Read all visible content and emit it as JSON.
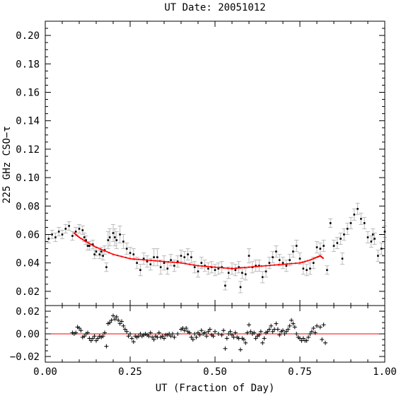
{
  "chart_data": [
    {
      "type": "scatter",
      "title": "UT Date: 20051012",
      "xlabel": "UT (Fraction of Day)",
      "ylabel": "225 GHz CSO−τ",
      "xlim": [
        0,
        1
      ],
      "ylim": [
        0.01,
        0.21
      ],
      "xticks": [
        "0.00",
        "0.25",
        "0.50",
        "0.75",
        "1.00"
      ],
      "yticks": [
        "0.02",
        "0.04",
        "0.06",
        "0.08",
        "0.10",
        "0.12",
        "0.14",
        "0.16",
        "0.18",
        "0.20"
      ],
      "colors": {
        "points": "#000000",
        "errorbars": "#bbbbbb",
        "fit": "#ff0000"
      },
      "series": [
        {
          "kind": "points-with-errorbars",
          "points": [
            [
              0.01,
              0.057,
              0.003
            ],
            [
              0.02,
              0.06,
              0.003
            ],
            [
              0.03,
              0.058,
              0.003
            ],
            [
              0.04,
              0.062,
              0.003
            ],
            [
              0.05,
              0.06,
              0.003
            ],
            [
              0.06,
              0.064,
              0.003
            ],
            [
              0.07,
              0.066,
              0.003
            ],
            [
              0.08,
              0.059,
              0.003
            ],
            [
              0.09,
              0.062,
              0.003
            ],
            [
              0.1,
              0.064,
              0.003
            ],
            [
              0.11,
              0.063,
              0.003
            ],
            [
              0.115,
              0.058,
              0.003
            ],
            [
              0.12,
              0.056,
              0.003
            ],
            [
              0.125,
              0.052,
              0.003
            ],
            [
              0.13,
              0.052,
              0.003
            ],
            [
              0.14,
              0.053,
              0.003
            ],
            [
              0.145,
              0.046,
              0.003
            ],
            [
              0.15,
              0.048,
              0.003
            ],
            [
              0.16,
              0.046,
              0.003
            ],
            [
              0.165,
              0.048,
              0.003
            ],
            [
              0.17,
              0.045,
              0.003
            ],
            [
              0.175,
              0.049,
              0.003
            ],
            [
              0.18,
              0.037,
              0.003
            ],
            [
              0.185,
              0.056,
              0.006
            ],
            [
              0.19,
              0.058,
              0.006
            ],
            [
              0.2,
              0.061,
              0.006
            ],
            [
              0.205,
              0.058,
              0.006
            ],
            [
              0.21,
              0.056,
              0.006
            ],
            [
              0.22,
              0.06,
              0.006
            ],
            [
              0.23,
              0.055,
              0.005
            ],
            [
              0.24,
              0.05,
              0.004
            ],
            [
              0.25,
              0.047,
              0.004
            ],
            [
              0.26,
              0.046,
              0.004
            ],
            [
              0.27,
              0.04,
              0.004
            ],
            [
              0.28,
              0.035,
              0.004
            ],
            [
              0.29,
              0.043,
              0.004
            ],
            [
              0.3,
              0.041,
              0.004
            ],
            [
              0.31,
              0.039,
              0.004
            ],
            [
              0.32,
              0.044,
              0.006
            ],
            [
              0.33,
              0.044,
              0.006
            ],
            [
              0.34,
              0.037,
              0.005
            ],
            [
              0.35,
              0.04,
              0.005
            ],
            [
              0.36,
              0.036,
              0.004
            ],
            [
              0.37,
              0.042,
              0.004
            ],
            [
              0.38,
              0.038,
              0.004
            ],
            [
              0.39,
              0.041,
              0.004
            ],
            [
              0.4,
              0.045,
              0.004
            ],
            [
              0.41,
              0.044,
              0.004
            ],
            [
              0.42,
              0.046,
              0.004
            ],
            [
              0.43,
              0.044,
              0.004
            ],
            [
              0.44,
              0.037,
              0.004
            ],
            [
              0.45,
              0.034,
              0.004
            ],
            [
              0.46,
              0.04,
              0.004
            ],
            [
              0.47,
              0.038,
              0.004
            ],
            [
              0.48,
              0.036,
              0.004
            ],
            [
              0.49,
              0.037,
              0.004
            ],
            [
              0.5,
              0.035,
              0.004
            ],
            [
              0.51,
              0.036,
              0.004
            ],
            [
              0.52,
              0.037,
              0.004
            ],
            [
              0.53,
              0.024,
              0.003
            ],
            [
              0.54,
              0.033,
              0.004
            ],
            [
              0.55,
              0.036,
              0.004
            ],
            [
              0.56,
              0.035,
              0.004
            ],
            [
              0.57,
              0.037,
              0.004
            ],
            [
              0.575,
              0.023,
              0.004
            ],
            [
              0.58,
              0.033,
              0.004
            ],
            [
              0.59,
              0.032,
              0.004
            ],
            [
              0.6,
              0.045,
              0.005
            ],
            [
              0.61,
              0.037,
              0.004
            ],
            [
              0.62,
              0.038,
              0.004
            ],
            [
              0.63,
              0.038,
              0.004
            ],
            [
              0.64,
              0.03,
              0.004
            ],
            [
              0.65,
              0.034,
              0.004
            ],
            [
              0.66,
              0.04,
              0.004
            ],
            [
              0.67,
              0.044,
              0.004
            ],
            [
              0.68,
              0.048,
              0.004
            ],
            [
              0.69,
              0.042,
              0.004
            ],
            [
              0.7,
              0.04,
              0.004
            ],
            [
              0.71,
              0.038,
              0.004
            ],
            [
              0.72,
              0.042,
              0.004
            ],
            [
              0.73,
              0.048,
              0.004
            ],
            [
              0.74,
              0.052,
              0.004
            ],
            [
              0.75,
              0.043,
              0.004
            ],
            [
              0.76,
              0.036,
              0.004
            ],
            [
              0.77,
              0.035,
              0.004
            ],
            [
              0.78,
              0.036,
              0.004
            ],
            [
              0.79,
              0.04,
              0.004
            ],
            [
              0.8,
              0.051,
              0.004
            ],
            [
              0.81,
              0.05,
              0.004
            ],
            [
              0.82,
              0.052,
              0.004
            ],
            [
              0.83,
              0.035,
              0.003
            ],
            [
              0.84,
              0.068,
              0.003
            ],
            [
              0.85,
              0.052,
              0.004
            ],
            [
              0.86,
              0.054,
              0.004
            ],
            [
              0.87,
              0.057,
              0.004
            ],
            [
              0.875,
              0.043,
              0.004
            ],
            [
              0.88,
              0.06,
              0.004
            ],
            [
              0.89,
              0.064,
              0.004
            ],
            [
              0.9,
              0.068,
              0.004
            ],
            [
              0.91,
              0.074,
              0.004
            ],
            [
              0.92,
              0.078,
              0.004
            ],
            [
              0.93,
              0.071,
              0.004
            ],
            [
              0.94,
              0.068,
              0.004
            ],
            [
              0.95,
              0.058,
              0.004
            ],
            [
              0.96,
              0.055,
              0.004
            ],
            [
              0.965,
              0.06,
              0.004
            ],
            [
              0.97,
              0.057,
              0.004
            ],
            [
              0.98,
              0.045,
              0.004
            ],
            [
              0.99,
              0.05,
              0.004
            ],
            [
              1.0,
              0.062,
              0.004
            ]
          ]
        },
        {
          "kind": "fit-line",
          "x": [
            0.085,
            0.1,
            0.12,
            0.15,
            0.2,
            0.25,
            0.3,
            0.35,
            0.4,
            0.45,
            0.5,
            0.55,
            0.6,
            0.65,
            0.7,
            0.75,
            0.78,
            0.8,
            0.81,
            0.82
          ],
          "y": [
            0.061,
            0.058,
            0.055,
            0.051,
            0.046,
            0.043,
            0.042,
            0.041,
            0.04,
            0.038,
            0.037,
            0.036,
            0.037,
            0.038,
            0.039,
            0.04,
            0.042,
            0.044,
            0.045,
            0.043
          ]
        }
      ]
    },
    {
      "type": "scatter",
      "title": "",
      "xlabel": "",
      "ylabel": "",
      "xlim": [
        0,
        1
      ],
      "ylim": [
        -0.025,
        0.025
      ],
      "yticks": [
        "0.02",
        "0.00",
        "−0.02"
      ],
      "zero_line": 0,
      "colors": {
        "points": "#000000",
        "zero": "#ff0000"
      },
      "points": [
        [
          0.08,
          0.001
        ],
        [
          0.085,
          0.0
        ],
        [
          0.09,
          0.001
        ],
        [
          0.095,
          0.006
        ],
        [
          0.1,
          0.005
        ],
        [
          0.105,
          0.003
        ],
        [
          0.11,
          -0.003
        ],
        [
          0.115,
          -0.002
        ],
        [
          0.12,
          0.0
        ],
        [
          0.125,
          0.001
        ],
        [
          0.13,
          -0.004
        ],
        [
          0.135,
          -0.006
        ],
        [
          0.14,
          -0.004
        ],
        [
          0.145,
          -0.002
        ],
        [
          0.15,
          -0.006
        ],
        [
          0.155,
          -0.004
        ],
        [
          0.16,
          -0.002
        ],
        [
          0.165,
          -0.003
        ],
        [
          0.17,
          -0.002
        ],
        [
          0.175,
          0.001
        ],
        [
          0.18,
          -0.011
        ],
        [
          0.185,
          0.009
        ],
        [
          0.19,
          0.01
        ],
        [
          0.195,
          0.012
        ],
        [
          0.2,
          0.016
        ],
        [
          0.205,
          0.013
        ],
        [
          0.21,
          0.015
        ],
        [
          0.215,
          0.012
        ],
        [
          0.22,
          0.009
        ],
        [
          0.225,
          0.011
        ],
        [
          0.23,
          0.007
        ],
        [
          0.235,
          0.004
        ],
        [
          0.24,
          0.002
        ],
        [
          0.245,
          -0.002
        ],
        [
          0.25,
          0.0
        ],
        [
          0.255,
          -0.004
        ],
        [
          0.26,
          -0.007
        ],
        [
          0.265,
          -0.002
        ],
        [
          0.27,
          -0.003
        ],
        [
          0.275,
          -0.002
        ],
        [
          0.28,
          0.0
        ],
        [
          0.285,
          -0.002
        ],
        [
          0.29,
          -0.001
        ],
        [
          0.295,
          0.0
        ],
        [
          0.3,
          -0.001
        ],
        [
          0.305,
          -0.002
        ],
        [
          0.31,
          0.001
        ],
        [
          0.315,
          -0.003
        ],
        [
          0.32,
          -0.005
        ],
        [
          0.325,
          -0.002
        ],
        [
          0.33,
          -0.003
        ],
        [
          0.335,
          0.001
        ],
        [
          0.34,
          -0.003
        ],
        [
          0.345,
          -0.002
        ],
        [
          0.35,
          -0.004
        ],
        [
          0.355,
          -0.001
        ],
        [
          0.36,
          -0.001
        ],
        [
          0.365,
          0.0
        ],
        [
          0.37,
          -0.002
        ],
        [
          0.375,
          0.0
        ],
        [
          0.38,
          -0.003
        ],
        [
          0.39,
          0.0
        ],
        [
          0.4,
          0.004
        ],
        [
          0.405,
          0.005
        ],
        [
          0.41,
          0.003
        ],
        [
          0.415,
          0.005
        ],
        [
          0.42,
          0.002
        ],
        [
          0.425,
          0.001
        ],
        [
          0.43,
          -0.003
        ],
        [
          0.435,
          -0.005
        ],
        [
          0.44,
          0.0
        ],
        [
          0.445,
          -0.003
        ],
        [
          0.45,
          0.001
        ],
        [
          0.455,
          -0.001
        ],
        [
          0.46,
          0.003
        ],
        [
          0.465,
          0.0
        ],
        [
          0.47,
          0.001
        ],
        [
          0.475,
          -0.002
        ],
        [
          0.48,
          0.002
        ],
        [
          0.485,
          0.004
        ],
        [
          0.49,
          -0.001
        ],
        [
          0.495,
          -0.002
        ],
        [
          0.5,
          0.002
        ],
        [
          0.51,
          0.0
        ],
        [
          0.52,
          -0.001
        ],
        [
          0.525,
          0.003
        ],
        [
          0.53,
          -0.013
        ],
        [
          0.535,
          -0.004
        ],
        [
          0.54,
          0.0
        ],
        [
          0.545,
          0.002
        ],
        [
          0.55,
          -0.001
        ],
        [
          0.555,
          -0.003
        ],
        [
          0.56,
          0.001
        ],
        [
          0.565,
          -0.003
        ],
        [
          0.57,
          -0.004
        ],
        [
          0.575,
          -0.014
        ],
        [
          0.58,
          -0.004
        ],
        [
          0.585,
          -0.005
        ],
        [
          0.59,
          -0.008
        ],
        [
          0.595,
          0.001
        ],
        [
          0.6,
          0.008
        ],
        [
          0.605,
          0.002
        ],
        [
          0.61,
          0.0
        ],
        [
          0.615,
          0.001
        ],
        [
          0.62,
          -0.004
        ],
        [
          0.625,
          -0.002
        ],
        [
          0.63,
          -0.001
        ],
        [
          0.635,
          0.002
        ],
        [
          0.64,
          -0.008
        ],
        [
          0.645,
          -0.004
        ],
        [
          0.65,
          0.001
        ],
        [
          0.655,
          0.002
        ],
        [
          0.66,
          0.004
        ],
        [
          0.665,
          0.007
        ],
        [
          0.67,
          0.002
        ],
        [
          0.675,
          0.004
        ],
        [
          0.68,
          0.009
        ],
        [
          0.685,
          0.004
        ],
        [
          0.69,
          -0.001
        ],
        [
          0.695,
          0.002
        ],
        [
          0.7,
          0.003
        ],
        [
          0.705,
          0.0
        ],
        [
          0.71,
          0.002
        ],
        [
          0.715,
          0.004
        ],
        [
          0.72,
          0.007
        ],
        [
          0.725,
          0.012
        ],
        [
          0.73,
          0.009
        ],
        [
          0.735,
          0.006
        ],
        [
          0.74,
          0.0
        ],
        [
          0.745,
          -0.003
        ],
        [
          0.75,
          -0.004
        ],
        [
          0.755,
          -0.006
        ],
        [
          0.76,
          -0.004
        ],
        [
          0.765,
          -0.006
        ],
        [
          0.77,
          -0.006
        ],
        [
          0.775,
          -0.003
        ],
        [
          0.78,
          0.0
        ],
        [
          0.785,
          0.002
        ],
        [
          0.79,
          0.005
        ],
        [
          0.795,
          0.001
        ],
        [
          0.8,
          0.007
        ],
        [
          0.81,
          0.006
        ],
        [
          0.815,
          -0.005
        ],
        [
          0.82,
          0.008
        ],
        [
          0.825,
          -0.008
        ]
      ]
    }
  ]
}
